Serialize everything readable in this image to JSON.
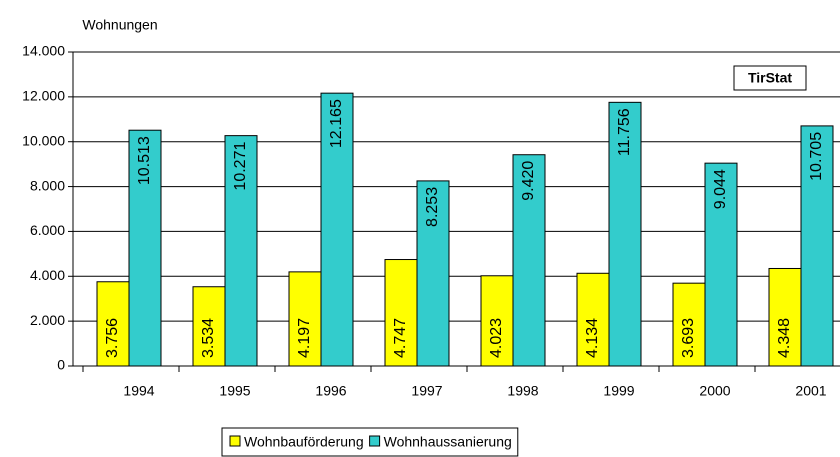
{
  "chart_data": {
    "type": "bar",
    "y_label": "Wohnungen",
    "annotation": "TirStat",
    "categories": [
      "1994",
      "1995",
      "1996",
      "1997",
      "1998",
      "1999",
      "2000",
      "2001"
    ],
    "series": [
      {
        "name": "Wohnbauförderung",
        "color": "#ffff00",
        "values": [
          3756,
          3534,
          4197,
          4747,
          4023,
          4134,
          3693,
          4348
        ],
        "value_labels": [
          "3.756",
          "3.534",
          "4.197",
          "4.747",
          "4.023",
          "4.134",
          "3.693",
          "4.348"
        ]
      },
      {
        "name": "Wohnhaussanierung",
        "color": "#33cccc",
        "values": [
          10513,
          10271,
          12165,
          8253,
          9420,
          11756,
          9044,
          10705
        ],
        "value_labels": [
          "10.513",
          "10.271",
          "12.165",
          "8.253",
          "9.420",
          "11.756",
          "9.044",
          "10.705"
        ]
      }
    ],
    "ylim": [
      0,
      14000
    ],
    "yticks": [
      0,
      {
        "value": 2000,
        "label": "2.000"
      },
      {
        "value": 4000,
        "label": "4.000"
      },
      {
        "value": 6000,
        "label": "6.000"
      },
      {
        "value": 8000,
        "label": "8.000"
      },
      {
        "value": 10000,
        "label": "10.000"
      },
      {
        "value": 12000,
        "label": "12.000"
      },
      {
        "value": 14000,
        "label": "14.000"
      }
    ],
    "grid": true
  }
}
